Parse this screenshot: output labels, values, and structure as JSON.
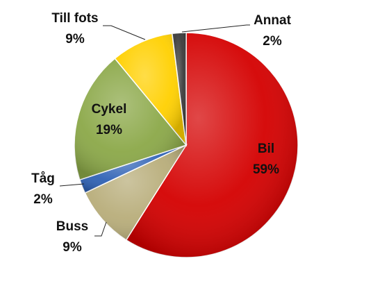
{
  "chart_data": {
    "type": "pie",
    "title": "",
    "slices": [
      {
        "label": "Bil",
        "value": 59,
        "value_label": "59%",
        "color": "#d40000"
      },
      {
        "label": "Buss",
        "value": 9,
        "value_label": "9%",
        "color": "#b8ad7a"
      },
      {
        "label": "Tåg",
        "value": 2,
        "value_label": "2%",
        "color": "#2f62b5"
      },
      {
        "label": "Cykel",
        "value": 19,
        "value_label": "19%",
        "color": "#8ba848"
      },
      {
        "label": "Till fots",
        "value": 9,
        "value_label": "9%",
        "color": "#ffd000"
      },
      {
        "label": "Annat",
        "value": 2,
        "value_label": "2%",
        "color": "#3a3a3a"
      }
    ]
  }
}
